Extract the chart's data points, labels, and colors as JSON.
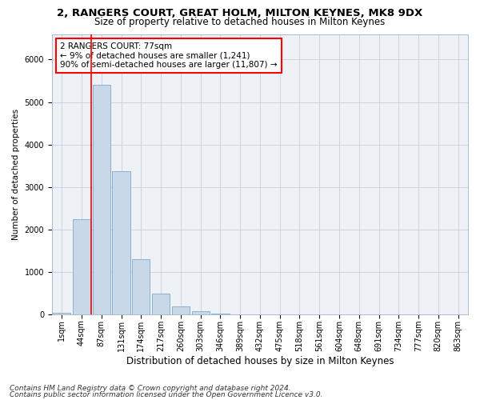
{
  "title1": "2, RANGERS COURT, GREAT HOLM, MILTON KEYNES, MK8 9DX",
  "title2": "Size of property relative to detached houses in Milton Keynes",
  "xlabel": "Distribution of detached houses by size in Milton Keynes",
  "ylabel": "Number of detached properties",
  "bar_labels": [
    "1sqm",
    "44sqm",
    "87sqm",
    "131sqm",
    "174sqm",
    "217sqm",
    "260sqm",
    "303sqm",
    "346sqm",
    "389sqm",
    "432sqm",
    "475sqm",
    "518sqm",
    "561sqm",
    "604sqm",
    "648sqm",
    "691sqm",
    "734sqm",
    "777sqm",
    "820sqm",
    "863sqm"
  ],
  "bar_values": [
    50,
    2250,
    5400,
    3380,
    1300,
    490,
    190,
    80,
    20,
    0,
    0,
    0,
    0,
    0,
    0,
    0,
    0,
    0,
    0,
    0,
    0
  ],
  "bar_color": "#c8d8e8",
  "bar_edge_color": "#7aaac8",
  "vline_x": 1.5,
  "vline_color": "red",
  "ylim": [
    0,
    6600
  ],
  "annotation_text": "2 RANGERS COURT: 77sqm\n← 9% of detached houses are smaller (1,241)\n90% of semi-detached houses are larger (11,807) →",
  "annotation_box_color": "white",
  "annotation_box_edge_color": "red",
  "footer1": "Contains HM Land Registry data © Crown copyright and database right 2024.",
  "footer2": "Contains public sector information licensed under the Open Government Licence v3.0.",
  "bg_color": "#eef2f7",
  "grid_color": "#c8d0dc",
  "title1_fontsize": 9.5,
  "title2_fontsize": 8.5,
  "xlabel_fontsize": 8.5,
  "ylabel_fontsize": 7.5,
  "tick_fontsize": 7,
  "footer_fontsize": 6.5,
  "annotation_fontsize": 7.5
}
